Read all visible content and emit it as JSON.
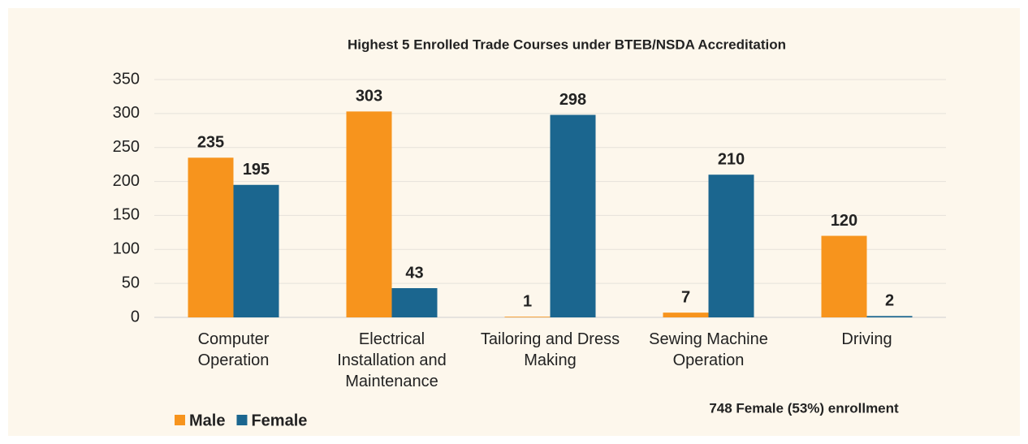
{
  "chart_data": {
    "type": "bar",
    "title": "Highest 5 Enrolled Trade Courses under BTEB/NSDA Accreditation",
    "categories": [
      "Computer Operation",
      "Electrical Installation and Maintenance",
      "Tailoring and Dress Making",
      "Sewing Machine Operation",
      "Driving"
    ],
    "series": [
      {
        "name": "Male",
        "color": "#f7941d",
        "values": [
          235,
          303,
          1,
          7,
          120
        ]
      },
      {
        "name": "Female",
        "color": "#1b668f",
        "values": [
          195,
          43,
          298,
          210,
          2
        ]
      }
    ],
    "ylim": [
      0,
      350
    ],
    "yticks": [
      0,
      50,
      100,
      150,
      200,
      250,
      300,
      350
    ],
    "grid": true,
    "legend": "bottom-left",
    "annotation": "748 Female (53%) enrollment"
  }
}
